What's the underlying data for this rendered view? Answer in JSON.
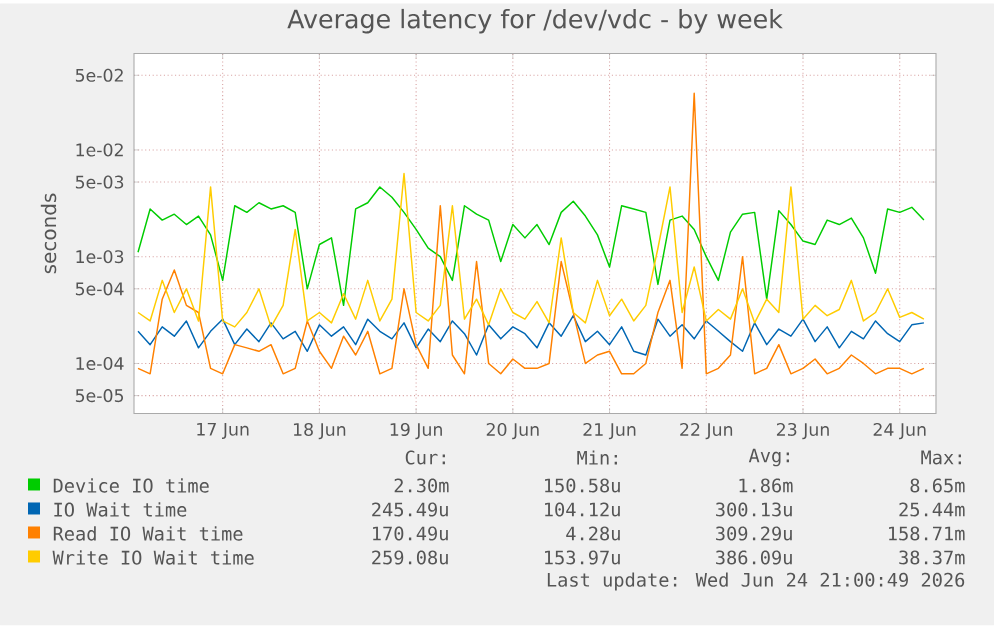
{
  "chart_data": {
    "type": "line",
    "title": "Average latency for /dev/vdc - by week",
    "ylabel": "seconds",
    "log": "y",
    "grid": true,
    "legend": "bottom",
    "xlim": [
      "2026-06-16T14:00",
      "2026-06-24T21:00"
    ],
    "xticks": [
      {
        "value": "2026-06-17T12:00",
        "label": "17 Jun"
      },
      {
        "value": "2026-06-18T12:00",
        "label": "18 Jun"
      },
      {
        "value": "2026-06-19T12:00",
        "label": "19 Jun"
      },
      {
        "value": "2026-06-20T12:00",
        "label": "20 Jun"
      },
      {
        "value": "2026-06-21T12:00",
        "label": "21 Jun"
      },
      {
        "value": "2026-06-22T12:00",
        "label": "22 Jun"
      },
      {
        "value": "2026-06-23T12:00",
        "label": "23 Jun"
      },
      {
        "value": "2026-06-24T12:00",
        "label": "24 Jun"
      }
    ],
    "ylim": [
      3.4e-05,
      0.08
    ],
    "yticks": [
      {
        "value": 5e-05,
        "label": "5e-05"
      },
      {
        "value": 0.0001,
        "label": "1e-04"
      },
      {
        "value": 0.0005,
        "label": "5e-04"
      },
      {
        "value": 0.001,
        "label": "1e-03"
      },
      {
        "value": 0.005,
        "label": "5e-03"
      },
      {
        "value": 0.01,
        "label": "1e-02"
      },
      {
        "value": 0.05,
        "label": "5e-02"
      }
    ],
    "x": [
      "2026-06-16T15:00",
      "2026-06-16T18:00",
      "2026-06-16T21:00",
      "2026-06-17T00:00",
      "2026-06-17T03:00",
      "2026-06-17T06:00",
      "2026-06-17T09:00",
      "2026-06-17T12:00",
      "2026-06-17T15:00",
      "2026-06-17T18:00",
      "2026-06-17T21:00",
      "2026-06-18T00:00",
      "2026-06-18T03:00",
      "2026-06-18T06:00",
      "2026-06-18T09:00",
      "2026-06-18T12:00",
      "2026-06-18T15:00",
      "2026-06-18T18:00",
      "2026-06-18T21:00",
      "2026-06-19T00:00",
      "2026-06-19T03:00",
      "2026-06-19T06:00",
      "2026-06-19T09:00",
      "2026-06-19T12:00",
      "2026-06-19T15:00",
      "2026-06-19T18:00",
      "2026-06-19T21:00",
      "2026-06-20T00:00",
      "2026-06-20T03:00",
      "2026-06-20T06:00",
      "2026-06-20T09:00",
      "2026-06-20T12:00",
      "2026-06-20T15:00",
      "2026-06-20T18:00",
      "2026-06-20T21:00",
      "2026-06-21T00:00",
      "2026-06-21T03:00",
      "2026-06-21T06:00",
      "2026-06-21T09:00",
      "2026-06-21T12:00",
      "2026-06-21T15:00",
      "2026-06-21T18:00",
      "2026-06-21T21:00",
      "2026-06-22T00:00",
      "2026-06-22T03:00",
      "2026-06-22T06:00",
      "2026-06-22T09:00",
      "2026-06-22T12:00",
      "2026-06-22T15:00",
      "2026-06-22T18:00",
      "2026-06-22T21:00",
      "2026-06-23T00:00",
      "2026-06-23T03:00",
      "2026-06-23T06:00",
      "2026-06-23T09:00",
      "2026-06-23T12:00",
      "2026-06-23T15:00",
      "2026-06-23T18:00",
      "2026-06-23T21:00",
      "2026-06-24T00:00",
      "2026-06-24T03:00",
      "2026-06-24T06:00",
      "2026-06-24T09:00",
      "2026-06-24T12:00",
      "2026-06-24T15:00",
      "2026-06-24T18:00"
    ],
    "series": [
      {
        "name": "Device IO time",
        "color": "#00cc00",
        "values": [
          0.0011,
          0.0028,
          0.0022,
          0.0025,
          0.002,
          0.0024,
          0.0016,
          0.0006,
          0.003,
          0.0026,
          0.0032,
          0.0028,
          0.003,
          0.0026,
          0.0005,
          0.0013,
          0.0015,
          0.00035,
          0.0028,
          0.0032,
          0.0045,
          0.0036,
          0.0026,
          0.0018,
          0.0012,
          0.001,
          0.0006,
          0.003,
          0.0025,
          0.0022,
          0.0009,
          0.002,
          0.0015,
          0.002,
          0.0013,
          0.0026,
          0.0033,
          0.0024,
          0.0016,
          0.0008,
          0.003,
          0.0028,
          0.0026,
          0.00055,
          0.0022,
          0.0024,
          0.0018,
          0.001,
          0.0006,
          0.0017,
          0.0025,
          0.0026,
          0.0004,
          0.0027,
          0.002,
          0.0014,
          0.0013,
          0.0022,
          0.002,
          0.0023,
          0.0015,
          0.0007,
          0.0028,
          0.0026,
          0.0029,
          0.0022
        ]
      },
      {
        "name": "IO Wait time",
        "color": "#0066b3",
        "values": [
          0.0002,
          0.00015,
          0.00022,
          0.00018,
          0.00025,
          0.00014,
          0.0002,
          0.00026,
          0.00015,
          0.00021,
          0.00016,
          0.00024,
          0.00017,
          0.0002,
          0.00013,
          0.00023,
          0.00018,
          0.00022,
          0.00015,
          0.00026,
          0.0002,
          0.00017,
          0.00024,
          0.00014,
          0.00021,
          0.00016,
          0.00025,
          0.00019,
          0.00012,
          0.00023,
          0.00017,
          0.00022,
          0.00019,
          0.00014,
          0.00024,
          0.00018,
          0.00028,
          0.00016,
          0.0002,
          0.00015,
          0.00022,
          0.00013,
          0.00012,
          0.00026,
          0.00018,
          0.00023,
          0.00017,
          0.00025,
          0.0002,
          0.00016,
          0.00013,
          0.00024,
          0.00015,
          0.00021,
          0.00018,
          0.00026,
          0.00016,
          0.00022,
          0.00014,
          0.0002,
          0.00017,
          0.00025,
          0.00019,
          0.00016,
          0.00023,
          0.00024
        ]
      },
      {
        "name": "Read IO Wait time",
        "color": "#ff8000",
        "values": [
          9e-05,
          8e-05,
          0.0004,
          0.00075,
          0.00035,
          0.0003,
          9e-05,
          8e-05,
          0.00015,
          0.00014,
          0.00013,
          0.00015,
          8e-05,
          9e-05,
          0.00025,
          0.00013,
          9e-05,
          0.00018,
          0.00012,
          0.0002,
          8e-05,
          9e-05,
          0.0005,
          0.00015,
          9e-05,
          0.003,
          0.00012,
          8e-05,
          0.0009,
          0.0001,
          8e-05,
          0.00011,
          9e-05,
          9e-05,
          0.0001,
          0.0009,
          0.0003,
          0.0001,
          0.00012,
          0.00013,
          8e-05,
          8e-05,
          0.0001,
          0.0003,
          0.0006,
          9e-05,
          0.034,
          8e-05,
          9e-05,
          0.00012,
          0.001,
          8e-05,
          9e-05,
          0.00015,
          8e-05,
          9e-05,
          0.00011,
          8e-05,
          9e-05,
          0.00012,
          0.0001,
          8e-05,
          9e-05,
          9e-05,
          8e-05,
          9e-05
        ]
      },
      {
        "name": "Write IO Wait time",
        "color": "#ffcc00",
        "values": [
          0.0003,
          0.00025,
          0.0006,
          0.0003,
          0.0005,
          0.00025,
          0.0045,
          0.00025,
          0.00022,
          0.0003,
          0.0005,
          0.00022,
          0.00035,
          0.0018,
          0.00025,
          0.0003,
          0.00024,
          0.00045,
          0.00026,
          0.0006,
          0.00025,
          0.0004,
          0.006,
          0.0003,
          0.00025,
          0.00035,
          0.003,
          0.00026,
          0.0004,
          0.00023,
          0.0005,
          0.0003,
          0.00026,
          0.00038,
          0.00024,
          0.0015,
          0.0003,
          0.00024,
          0.0006,
          0.00028,
          0.0004,
          0.00025,
          0.00035,
          0.0012,
          0.0045,
          0.0003,
          0.0008,
          0.00025,
          0.00032,
          0.00026,
          0.0005,
          0.00024,
          0.0004,
          0.0003,
          0.0045,
          0.00026,
          0.00035,
          0.00028,
          0.00032,
          0.0006,
          0.00025,
          0.0003,
          0.0005,
          0.00027,
          0.0003,
          0.00026
        ]
      }
    ],
    "annotations": [
      "Cur:",
      "Min:",
      "Avg:",
      "Max:",
      "2.30m",
      "150.58u",
      "1.86m",
      "8.65m",
      "245.49u",
      "104.12u",
      "300.13u",
      "25.44m",
      "170.49u",
      "4.28u",
      "309.29u",
      "158.71m",
      "259.08u",
      "153.97u",
      "386.09u",
      "38.37m",
      "Last update: Wed Jun 24 21:00:49 2026"
    ]
  }
}
